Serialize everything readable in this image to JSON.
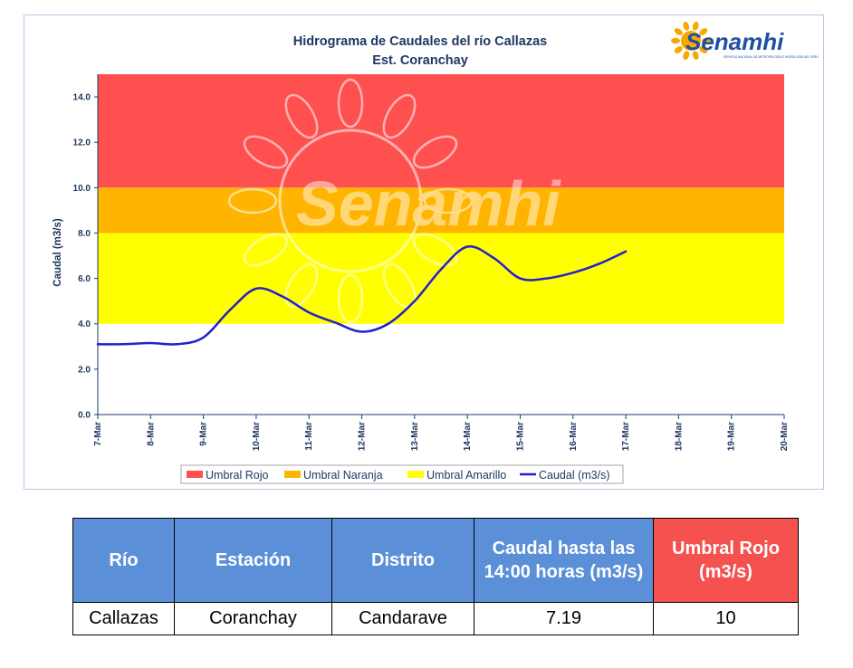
{
  "chart_data": {
    "type": "line",
    "title": "Hidrograma de Caudales del río Callazas",
    "subtitle": "Est. Coranchay",
    "ylabel": "Caudal (m3/s)",
    "ylim": [
      0,
      15
    ],
    "y_ticks": [
      "0.0",
      "2.0",
      "4.0",
      "6.0",
      "8.0",
      "10.0",
      "12.0",
      "14.0"
    ],
    "y_tick_values": [
      0,
      2,
      4,
      6,
      8,
      10,
      12,
      14
    ],
    "categories": [
      "7-Mar",
      "8-Mar",
      "9-Mar",
      "10-Mar",
      "11-Mar",
      "12-Mar",
      "13-Mar",
      "14-Mar",
      "15-Mar",
      "16-Mar",
      "17-Mar",
      "18-Mar",
      "19-Mar",
      "20-Mar"
    ],
    "thresholds": [
      {
        "name": "Umbral Rojo",
        "from": 10,
        "to": 15,
        "color": "#ff5050"
      },
      {
        "name": "Umbral Naranja",
        "from": 8,
        "to": 10,
        "color": "#ffb400"
      },
      {
        "name": "Umbral Amarillo",
        "from": 4,
        "to": 8,
        "color": "#ffff00"
      }
    ],
    "series": [
      {
        "name": "Caudal (m3/s)",
        "color": "#2222cc",
        "points": [
          [
            0,
            3.1
          ],
          [
            0.5,
            3.1
          ],
          [
            1,
            3.15
          ],
          [
            1.5,
            3.1
          ],
          [
            2,
            3.4
          ],
          [
            2.5,
            4.6
          ],
          [
            3,
            5.55
          ],
          [
            3.5,
            5.2
          ],
          [
            4,
            4.5
          ],
          [
            4.5,
            4.05
          ],
          [
            5,
            3.65
          ],
          [
            5.5,
            4.0
          ],
          [
            6,
            5.0
          ],
          [
            6.5,
            6.4
          ],
          [
            7,
            7.4
          ],
          [
            7.5,
            6.9
          ],
          [
            8,
            6.0
          ],
          [
            8.5,
            6.0
          ],
          [
            9,
            6.25
          ],
          [
            9.5,
            6.65
          ],
          [
            10,
            7.19
          ]
        ]
      }
    ],
    "legend": {
      "position": "bottom",
      "entries": [
        {
          "label": "Umbral Rojo",
          "color": "#ff5050",
          "kind": "box"
        },
        {
          "label": "Umbral Naranja",
          "color": "#ffb400",
          "kind": "box"
        },
        {
          "label": "Umbral Amarillo",
          "color": "#ffff00",
          "kind": "box"
        },
        {
          "label": "Caudal (m3/s)",
          "color": "#2222cc",
          "kind": "line"
        }
      ]
    },
    "grid": false
  },
  "logo": {
    "text": "Senamhi",
    "tagline": "SERVICIO NACIONAL DE METEOROLOGÍA E HIDROLOGÍA DEL PERÚ"
  },
  "watermark": {
    "text": "Senamhi"
  },
  "table": {
    "headers": [
      {
        "label": "Río",
        "style": "blue"
      },
      {
        "label": "Estación",
        "style": "blue"
      },
      {
        "label": "Distrito",
        "style": "blue"
      },
      {
        "label": "Caudal hasta las 14:00 horas (m3/s)",
        "style": "blue"
      },
      {
        "label": "Umbral  Rojo (m3/s)",
        "style": "red"
      }
    ],
    "row": [
      "Callazas",
      "Coranchay",
      "Candarave",
      "7.19",
      "10"
    ]
  },
  "colors": {
    "header_blue": "#5b8fd8",
    "header_red": "#f4514f",
    "axis_text": "#1f3864"
  }
}
